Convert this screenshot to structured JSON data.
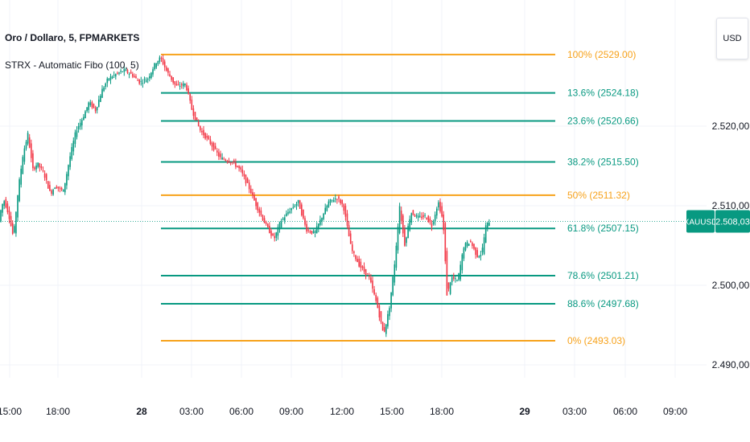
{
  "header": {
    "symbol_title": "Oro / Dollaro, 5, FPMARKETS",
    "indicator_title": "STRX - Automatic Fibo (100, 5)"
  },
  "currency_button": "USD",
  "price_axis": {
    "labels": [
      "2.520,00",
      "2.510,00",
      "2.500,00",
      "2.490,00"
    ],
    "label_values": [
      2520,
      2510,
      2500,
      2490
    ],
    "current_symbol": "XAUUSD",
    "current_price_label": "2.508,03",
    "current_price": 2508.03
  },
  "time_axis": {
    "labels": [
      "15:00",
      "18:00",
      "28",
      "03:00",
      "06:00",
      "09:00",
      "12:00",
      "15:00",
      "18:00",
      "29",
      "03:00",
      "06:00",
      "09:00"
    ],
    "bold": [
      false,
      false,
      true,
      false,
      false,
      false,
      false,
      false,
      false,
      true,
      false,
      false,
      false
    ]
  },
  "fib_levels": [
    {
      "label": "100% (2529.00)",
      "price": 2529.0,
      "color": "#f7a21b"
    },
    {
      "label": "13.6% (2524.18)",
      "price": 2524.18,
      "color": "#089981"
    },
    {
      "label": "23.6% (2520.66)",
      "price": 2520.66,
      "color": "#089981"
    },
    {
      "label": "38.2% (2515.50)",
      "price": 2515.5,
      "color": "#089981"
    },
    {
      "label": "50% (2511.32)",
      "price": 2511.32,
      "color": "#f7a21b"
    },
    {
      "label": "61.8% (2507.15)",
      "price": 2507.15,
      "color": "#089981"
    },
    {
      "label": "78.6% (2501.21)",
      "price": 2501.21,
      "color": "#089981"
    },
    {
      "label": "88.6% (2497.68)",
      "price": 2497.68,
      "color": "#089981"
    },
    {
      "label": "0% (2493.03)",
      "price": 2493.03,
      "color": "#f7a21b"
    }
  ],
  "colors": {
    "up": "#089981",
    "down": "#f23645",
    "fib_orange": "#f7a21b",
    "fib_teal": "#089981",
    "grid": "#f0f3fa",
    "axis_text": "#131722",
    "price_badge": "#089981"
  }
}
